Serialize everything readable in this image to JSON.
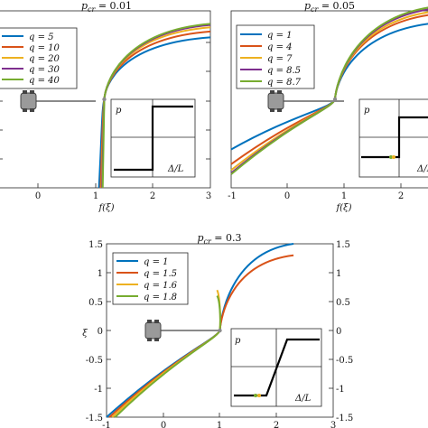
{
  "chart_data": [
    {
      "type": "line",
      "title": "p_cr = 0.01",
      "title_parts": {
        "main": "p",
        "sub": "cr",
        "rest": " = 0.01"
      },
      "xlabel": "f(ξ)",
      "ylabel": "",
      "xlim": [
        -1,
        3
      ],
      "ylim": [
        -1.5,
        1.5
      ],
      "xticks": [
        "0",
        "1",
        "2",
        "3"
      ],
      "yticks": [],
      "grid": false,
      "legend": {
        "position": "top-left",
        "entries": [
          "q = 5",
          "q = 10",
          "q = 20",
          "q = 30",
          "q = 40"
        ]
      },
      "series": [
        {
          "name": "q = 5",
          "color": "#0072BD",
          "tail": 0.45,
          "x_end": 3.0,
          "points": [
            [
              0.9,
              -1.5
            ],
            [
              1.0,
              0.0
            ],
            [
              3.0,
              1.05
            ]
          ]
        },
        {
          "name": "q = 10",
          "color": "#D95319",
          "tail": 0.28,
          "x_end": 3.0,
          "points": [
            [
              0.93,
              -1.5
            ],
            [
              1.0,
              0.0
            ],
            [
              3.0,
              1.15
            ]
          ]
        },
        {
          "name": "q = 20",
          "color": "#EDB120",
          "tail": 0.16,
          "x_end": 3.0,
          "points": [
            [
              0.95,
              -1.5
            ],
            [
              1.0,
              0.0
            ],
            [
              3.0,
              1.22
            ]
          ]
        },
        {
          "name": "q = 30",
          "color": "#7E2F8E",
          "tail": 0.1,
          "x_end": 3.0,
          "points": [
            [
              0.96,
              -1.5
            ],
            [
              1.0,
              0.0
            ],
            [
              3.0,
              1.26
            ]
          ]
        },
        {
          "name": "q = 40",
          "color": "#77AC30",
          "tail": 0.07,
          "x_end": 3.0,
          "points": [
            [
              0.97,
              -1.5
            ],
            [
              1.0,
              0.0
            ],
            [
              3.0,
              1.28
            ]
          ]
        }
      ],
      "inset": {
        "ylabel": "p",
        "xlabel": "Δ/L",
        "shape": "step"
      }
    },
    {
      "type": "line",
      "title": "p_cr = 0.05",
      "title_parts": {
        "main": "p",
        "sub": "cr",
        "rest": " = 0.05"
      },
      "xlabel": "f(ξ)",
      "ylabel": "",
      "xlim": [
        -1,
        3
      ],
      "ylim": [
        -1.5,
        1.5
      ],
      "xticks": [
        "-1",
        "0",
        "1",
        "2"
      ],
      "yticks": [],
      "grid": false,
      "legend": {
        "position": "top-left",
        "entries": [
          "q = 1",
          "q = 4",
          "q = 7",
          "q = 8.5",
          "q = 8.7"
        ]
      },
      "series": [
        {
          "name": "q = 1",
          "color": "#0072BD",
          "tail": 0.6,
          "x_end": 3.0,
          "points": [
            [
              -1.0,
              -0.85
            ],
            [
              1.0,
              0.0
            ],
            [
              3.0,
              1.3
            ]
          ]
        },
        {
          "name": "q = 4",
          "color": "#D95319",
          "tail": 0.55,
          "x_end": 3.0,
          "points": [
            [
              -1.0,
              -1.1
            ],
            [
              1.0,
              0.0
            ],
            [
              3.0,
              1.45
            ]
          ]
        },
        {
          "name": "q = 7",
          "color": "#EDB120",
          "tail": 0.5,
          "x_end": 3.0,
          "points": [
            [
              -1.0,
              -1.2
            ],
            [
              1.0,
              0.0
            ],
            [
              3.0,
              1.5
            ]
          ]
        },
        {
          "name": "q = 8.5",
          "color": "#7E2F8E",
          "tail": 0.45,
          "x_end": 3.0,
          "points": [
            [
              -1.0,
              -1.25
            ],
            [
              1.0,
              0.0
            ],
            [
              3.0,
              1.55
            ]
          ]
        },
        {
          "name": "q = 8.7",
          "color": "#77AC30",
          "tail": 0.45,
          "x_end": 3.0,
          "points": [
            [
              -1.0,
              -1.27
            ],
            [
              1.0,
              0.0
            ],
            [
              3.0,
              1.58
            ]
          ]
        }
      ],
      "inset": {
        "ylabel": "p",
        "xlabel": "Δ/L",
        "shape": "step-small"
      }
    },
    {
      "type": "line",
      "title": "p_cr = 0.3",
      "title_parts": {
        "main": "p",
        "sub": "cr",
        "rest": " = 0.3"
      },
      "xlabel": "",
      "ylabel": "ξ",
      "xlim": [
        -1,
        3
      ],
      "ylim": [
        -1.5,
        1.5
      ],
      "xticks": [
        "-1",
        "0",
        "1",
        "2",
        "3"
      ],
      "yticks": [
        "1.5",
        "1",
        "0.5",
        "0",
        "-0.5",
        "-1",
        "-1.5"
      ],
      "grid": false,
      "legend": {
        "position": "top-left",
        "entries": [
          "q = 1",
          "q = 1.5",
          "q = 1.6",
          "q = 1.8"
        ]
      },
      "series": [
        {
          "name": "q = 1",
          "color": "#0072BD",
          "tail": 0.65,
          "x_end": 2.3,
          "points": [
            [
              -1.0,
              -1.5
            ],
            [
              1.0,
              0.0
            ],
            [
              2.3,
              1.5
            ]
          ]
        },
        {
          "name": "q = 1.5",
          "color": "#D95319",
          "tail": 0.55,
          "x_end": 2.3,
          "points": [
            [
              -0.95,
              -1.5
            ],
            [
              1.0,
              0.0
            ],
            [
              2.3,
              1.3
            ]
          ]
        },
        {
          "name": "q = 1.6",
          "color": "#EDB120",
          "tail": 0.5,
          "x_end": 0.95,
          "points": [
            [
              -0.9,
              -1.5
            ],
            [
              1.0,
              0.0
            ],
            [
              0.95,
              0.7
            ]
          ]
        },
        {
          "name": "q = 1.8",
          "color": "#77AC30",
          "tail": 0.5,
          "x_end": 0.95,
          "points": [
            [
              -0.85,
              -1.5
            ],
            [
              1.0,
              0.0
            ],
            [
              0.95,
              0.6
            ]
          ]
        }
      ],
      "inset": {
        "ylabel": "p",
        "xlabel": "Δ/L",
        "shape": "ramp"
      }
    }
  ]
}
